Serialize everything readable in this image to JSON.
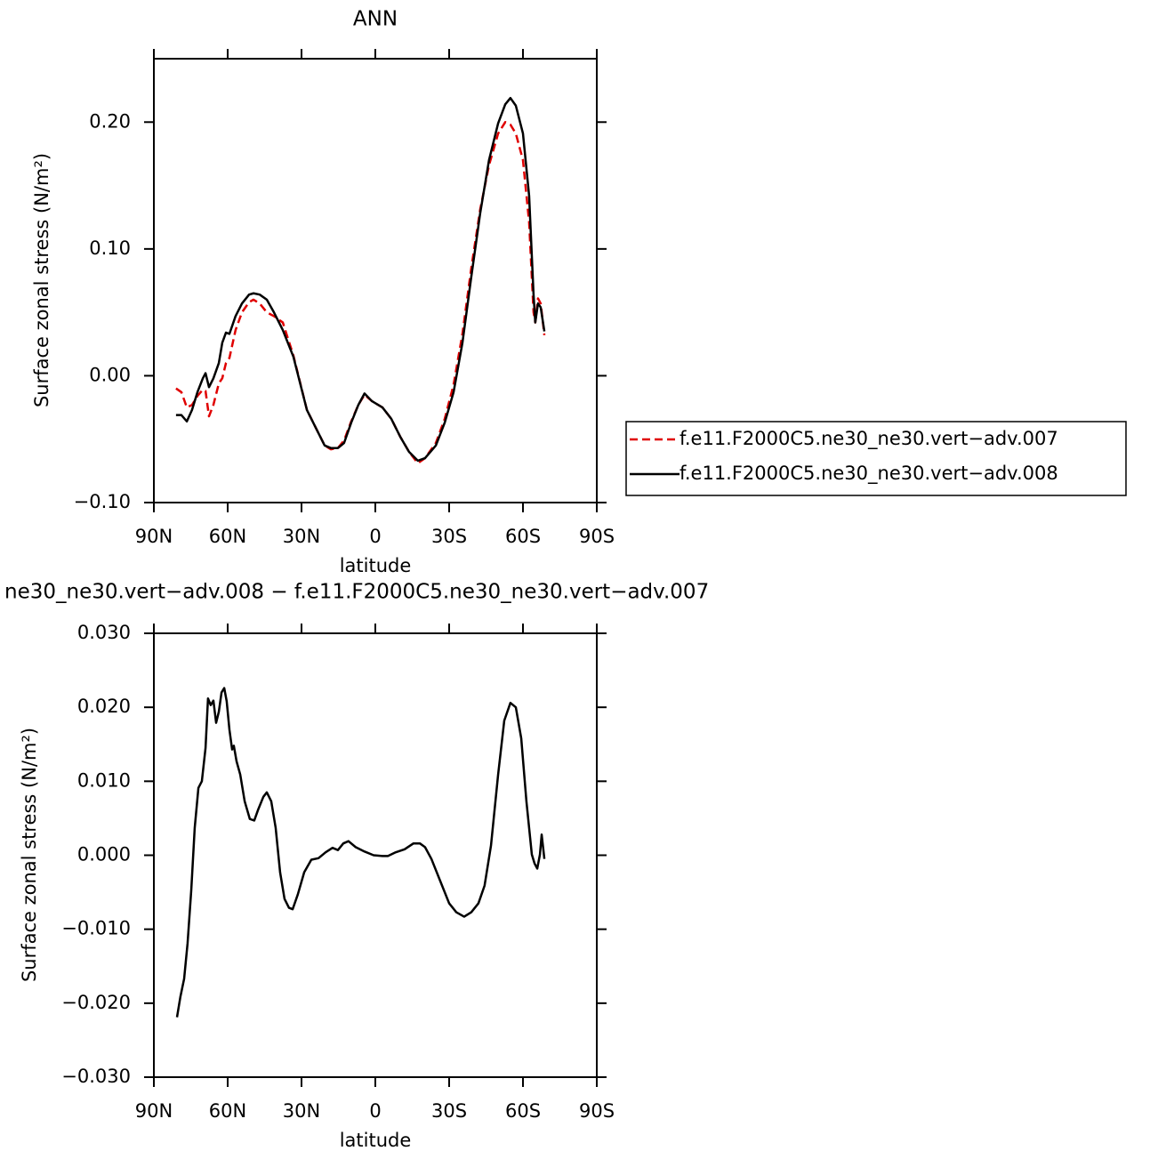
{
  "chart_data": [
    {
      "type": "line",
      "title": "ANN",
      "xlabel": "latitude",
      "ylabel": "Surface zonal stress (N/m²)",
      "x": [
        81,
        78.8,
        76.6,
        74.5,
        72.3,
        70.1,
        69.0,
        67.6,
        65.8,
        63.6,
        62.2,
        60.7,
        59.3,
        56.8,
        54.2,
        51.3,
        49.5,
        47.0,
        44.1,
        41.2,
        37.6,
        33.3,
        27.8,
        24.2,
        20.6,
        18.1,
        15.2,
        12.7,
        9.8,
        6.9,
        4.4,
        1.4,
        -2.9,
        -6.5,
        -10.1,
        -13.7,
        -17.3,
        -20.2,
        -24.6,
        -28.2,
        -31.8,
        -35.4,
        -39.0,
        -42.6,
        -46.2,
        -49.9,
        -52.8,
        -54.9,
        -57.1,
        -60.0,
        -62.5,
        -64.3,
        -65.0,
        -66.1,
        -67.2,
        -68.7
      ],
      "series": [
        {
          "name": "f.e11.F2000C5.ne30_ne30.vert−adv.007",
          "color": "#e00000",
          "linestyle": "dashed",
          "values": [
            -0.01,
            -0.013,
            -0.025,
            -0.023,
            -0.016,
            -0.011,
            -0.012,
            -0.032,
            -0.023,
            -0.006,
            -0.002,
            0.01,
            0.014,
            0.036,
            0.05,
            0.058,
            0.06,
            0.057,
            0.05,
            0.047,
            0.042,
            0.016,
            -0.027,
            -0.041,
            -0.055,
            -0.058,
            -0.057,
            -0.051,
            -0.036,
            -0.023,
            -0.015,
            -0.02,
            -0.025,
            -0.034,
            -0.048,
            -0.06,
            -0.069,
            -0.065,
            -0.053,
            -0.034,
            -0.007,
            0.033,
            0.085,
            0.131,
            0.166,
            0.191,
            0.2,
            0.198,
            0.191,
            0.17,
            0.121,
            0.05,
            0.042,
            0.061,
            0.057,
            0.032
          ]
        },
        {
          "name": "f.e11.F2000C5.ne30_ne30.vert−adv.008",
          "color": "#000000",
          "linestyle": "solid",
          "values": [
            -0.031,
            -0.031,
            -0.036,
            -0.027,
            -0.013,
            -0.002,
            0.002,
            -0.009,
            -0.002,
            0.01,
            0.026,
            0.034,
            0.033,
            0.047,
            0.057,
            0.064,
            0.065,
            0.064,
            0.06,
            0.05,
            0.036,
            0.015,
            -0.027,
            -0.041,
            -0.055,
            -0.057,
            -0.057,
            -0.053,
            -0.037,
            -0.023,
            -0.014,
            -0.02,
            -0.025,
            -0.034,
            -0.048,
            -0.06,
            -0.067,
            -0.065,
            -0.055,
            -0.037,
            -0.013,
            0.026,
            0.078,
            0.128,
            0.17,
            0.199,
            0.214,
            0.219,
            0.213,
            0.191,
            0.142,
            0.064,
            0.042,
            0.057,
            0.054,
            0.035
          ]
        }
      ],
      "xlim": [
        90,
        -90
      ],
      "xticks": [
        {
          "value": 90,
          "label": "90N"
        },
        {
          "value": 60,
          "label": "60N"
        },
        {
          "value": 30,
          "label": "30N"
        },
        0,
        {
          "value": -30,
          "label": "30S"
        },
        {
          "value": -60,
          "label": "60S"
        },
        {
          "value": -90,
          "label": "90S"
        }
      ],
      "ylim": [
        -0.1,
        0.25
      ],
      "yticks": [
        {
          "value": -0.1,
          "label": "−0.10"
        },
        {
          "value": 0,
          "label": "0.00"
        },
        {
          "value": 0.1,
          "label": "0.10"
        },
        {
          "value": 0.2,
          "label": "0.20"
        }
      ]
    },
    {
      "type": "line",
      "title": "ne30_ne30.vert−adv.008 − f.e11.F2000C5.ne30_ne30.vert−adv.007",
      "xlabel": "latitude",
      "ylabel": "Surface zonal stress (N/m²)",
      "x": [
        80.6,
        79.2,
        77.7,
        76.3,
        74.8,
        73.4,
        71.9,
        70.5,
        69.0,
        68.0,
        66.9,
        65.8,
        64.7,
        63.6,
        62.5,
        61.4,
        60.4,
        59.3,
        58.2,
        57.5,
        56.4,
        54.9,
        53.1,
        51.0,
        49.2,
        47.7,
        45.5,
        44.1,
        42.3,
        40.5,
        38.7,
        36.9,
        35.1,
        33.6,
        31.5,
        28.9,
        26.0,
        23.1,
        20.2,
        17.4,
        15.2,
        13.0,
        10.9,
        8.0,
        4.4,
        0.7,
        -2.9,
        -5.1,
        -8.3,
        -11.9,
        -15.5,
        -18.1,
        -20.2,
        -22.8,
        -26.4,
        -30.0,
        -32.9,
        -36.1,
        -39.0,
        -41.9,
        -44.4,
        -47.0,
        -49.9,
        -52.4,
        -54.9,
        -57.1,
        -59.3,
        -61.4,
        -63.6,
        -64.7,
        -65.8,
        -66.9,
        -67.6,
        -68.7
      ],
      "values": [
        -0.0219,
        -0.0191,
        -0.0167,
        -0.0119,
        -0.0047,
        0.0037,
        0.0091,
        0.01,
        0.0145,
        0.0212,
        0.0203,
        0.0209,
        0.0179,
        0.0194,
        0.022,
        0.0226,
        0.0208,
        0.017,
        0.0143,
        0.0148,
        0.0127,
        0.0109,
        0.0073,
        0.0049,
        0.0047,
        0.0061,
        0.0079,
        0.0085,
        0.0073,
        0.0037,
        -0.0023,
        -0.0059,
        -0.0071,
        -0.0073,
        -0.0053,
        -0.0023,
        -0.0006,
        -0.0004,
        0.0004,
        0.001,
        0.0007,
        0.0016,
        0.0019,
        0.0011,
        0.0005,
        0.0,
        -0.0001,
        -0.0001,
        0.0004,
        0.0008,
        0.0016,
        0.0016,
        0.0011,
        -0.0005,
        -0.0035,
        -0.0065,
        -0.0077,
        -0.0083,
        -0.0077,
        -0.0065,
        -0.0041,
        0.0013,
        0.0109,
        0.0182,
        0.0206,
        0.02,
        0.0158,
        0.0073,
        0.0001,
        -0.0011,
        -0.0018,
        0.0001,
        0.0028,
        -0.0005
      ],
      "color": "#000000",
      "linestyle": "solid",
      "xlim": [
        90,
        -90
      ],
      "xticks": [
        {
          "value": 90,
          "label": "90N"
        },
        {
          "value": 60,
          "label": "60N"
        },
        {
          "value": 30,
          "label": "30N"
        },
        0,
        {
          "value": -30,
          "label": "30S"
        },
        {
          "value": -60,
          "label": "60S"
        },
        {
          "value": -90,
          "label": "90S"
        }
      ],
      "ylim": [
        -0.03,
        0.03
      ],
      "yticks": [
        {
          "value": -0.03,
          "label": "−0.030"
        },
        {
          "value": -0.02,
          "label": "−0.020"
        },
        {
          "value": -0.01,
          "label": "−0.010"
        },
        {
          "value": 0,
          "label": "0.000"
        },
        {
          "value": 0.01,
          "label": "0.010"
        },
        {
          "value": 0.02,
          "label": "0.020"
        },
        {
          "value": 0.03,
          "label": "0.030"
        }
      ]
    }
  ]
}
